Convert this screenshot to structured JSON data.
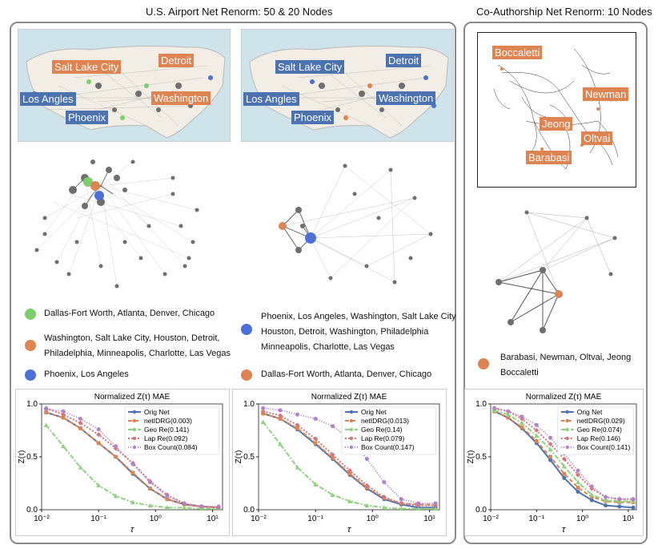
{
  "titles": {
    "airport": "U.S. Airport Net Renorm: 50 & 20 Nodes",
    "coauth": "Co-Authorship Net Renorm: 10 Nodes"
  },
  "maps": {
    "left": {
      "salt_lake_city": "Salt Lake City",
      "detroit": "Detroit",
      "los_angles": "Los Angles",
      "washington": "Washington",
      "phoenix": "Phoenix"
    },
    "right": {
      "salt_lake_city": "Salt Lake City",
      "detroit": "Detroit",
      "los_angles": "Los Angles",
      "washington": "Washington",
      "phoenix": "Phoenix"
    }
  },
  "coauth_labels": {
    "boccaletti": "Boccaletti",
    "newman": "Newman",
    "jeong": "Jeong",
    "oltvai": "Oltvai",
    "barabasi": "Barabasi"
  },
  "legends": {
    "left": {
      "green": "Dallas-Fort Worth, Atlanta, Denver, Chicago",
      "orange_1": "Washington, Salt Lake City, Houston, Detroit,",
      "orange_2": "Philadelphia, Minneapolis, Charlotte, Las Vegas",
      "blue": "Phoenix, Los Angeles"
    },
    "middle": {
      "gray": "Phoenix, Los Angeles, Washington, Salt Lake City",
      "blue_1": "Houston, Detroit, Washington, Philadelphia",
      "blue_2": "Minneapolis, Charlotte, Las Vegas",
      "orange": "Dallas-Fort Worth, Atlanta, Denver, Chicago"
    },
    "right": {
      "orange_1": "Barabasi, Newman, Oltvai, Jeong",
      "orange_2": "Boccaletti"
    }
  },
  "colors": {
    "orig": "#4c72b0",
    "netidrg": "#dd8452",
    "geo": "#8fd17f",
    "lap": "#d5767c",
    "box": "#b083c8",
    "green_node": "#7ccf6c",
    "orange_node": "#dd8452",
    "blue_node": "#4c6fd8",
    "gray_node": "#6e6e6e"
  },
  "chart_data": [
    {
      "type": "line",
      "title": "Normalized Z(τ) MAE",
      "xlabel": "τ",
      "ylabel": "Z(τ)",
      "xscale": "log",
      "xlim": [
        0.01,
        15
      ],
      "ylim": [
        0,
        1
      ],
      "xticks": [
        "10⁻²",
        "10⁻¹",
        "10⁰",
        "10¹"
      ],
      "yticks": [
        "0.0",
        "0.5",
        "1.0"
      ],
      "x": [
        0.012,
        0.024,
        0.048,
        0.1,
        0.2,
        0.4,
        0.8,
        1.6,
        3.2,
        6.4,
        12.8
      ],
      "series": [
        {
          "name": "Orig Net",
          "values": [
            0.92,
            0.87,
            0.77,
            0.63,
            0.5,
            0.34,
            0.2,
            0.1,
            0.05,
            0.03,
            0.02
          ]
        },
        {
          "name": "netIDRG(0.003)",
          "values": [
            0.92,
            0.87,
            0.77,
            0.63,
            0.5,
            0.35,
            0.2,
            0.1,
            0.05,
            0.03,
            0.02
          ]
        },
        {
          "name": "Geo Re(0.141)",
          "values": [
            0.8,
            0.6,
            0.4,
            0.23,
            0.13,
            0.07,
            0.04,
            0.02,
            0.02,
            0.01,
            0.01
          ]
        },
        {
          "name": "Lap Re(0.092)",
          "values": [
            0.96,
            0.9,
            0.82,
            0.71,
            0.58,
            0.44,
            0.27,
            0.14,
            0.06,
            0.03,
            0.02
          ]
        },
        {
          "name": "Box Count(0.084)",
          "values": [
            0.95,
            0.93,
            0.86,
            0.76,
            0.6,
            0.43,
            0.26,
            0.13,
            0.06,
            0.03,
            0.03
          ]
        }
      ]
    },
    {
      "type": "line",
      "title": "Normalized Z(τ) MAE",
      "xlabel": "τ",
      "ylabel": "Z(τ)",
      "xscale": "log",
      "xlim": [
        0.01,
        15
      ],
      "ylim": [
        0,
        1
      ],
      "xticks": [
        "10⁻²",
        "10⁻¹",
        "10⁰",
        "10¹"
      ],
      "yticks": [
        "0.0",
        "0.5",
        "1.0"
      ],
      "x": [
        0.012,
        0.024,
        0.048,
        0.1,
        0.2,
        0.4,
        0.8,
        1.6,
        3.2,
        6.4,
        12.8
      ],
      "series": [
        {
          "name": "Orig Net",
          "values": [
            0.91,
            0.86,
            0.76,
            0.62,
            0.48,
            0.33,
            0.2,
            0.1,
            0.05,
            0.02,
            0.02
          ]
        },
        {
          "name": "netIDRG(0.013)",
          "values": [
            0.91,
            0.86,
            0.77,
            0.63,
            0.49,
            0.34,
            0.21,
            0.11,
            0.06,
            0.05,
            0.05
          ]
        },
        {
          "name": "Geo Re(0.14)",
          "values": [
            0.83,
            0.62,
            0.4,
            0.24,
            0.14,
            0.08,
            0.04,
            0.02,
            0.01,
            0.01,
            0.01
          ]
        },
        {
          "name": "Lap Re(0.079)",
          "values": [
            0.93,
            0.89,
            0.8,
            0.67,
            0.52,
            0.37,
            0.23,
            0.12,
            0.06,
            0.04,
            0.04
          ]
        },
        {
          "name": "Box Count(0.147)",
          "values": [
            0.96,
            0.94,
            0.9,
            0.86,
            0.79,
            0.67,
            0.48,
            0.26,
            0.1,
            0.06,
            0.06
          ]
        }
      ]
    },
    {
      "type": "line",
      "title": "Normalized Z(τ) MAE",
      "xlabel": "τ",
      "ylabel": "Z(τ)",
      "xscale": "log",
      "xlim": [
        0.01,
        15
      ],
      "ylim": [
        0,
        1
      ],
      "xticks": [
        "10⁻²",
        "10⁻¹",
        "10⁰",
        "10¹"
      ],
      "yticks": [
        "0.0",
        "0.5",
        "1.0"
      ],
      "x": [
        0.012,
        0.024,
        0.048,
        0.1,
        0.2,
        0.4,
        0.8,
        1.6,
        3.2,
        6.4,
        12.8
      ],
      "series": [
        {
          "name": "Orig Net",
          "values": [
            0.93,
            0.87,
            0.77,
            0.63,
            0.47,
            0.3,
            0.17,
            0.09,
            0.04,
            0.03,
            0.02
          ]
        },
        {
          "name": "netIDRG(0.029)",
          "values": [
            0.93,
            0.87,
            0.78,
            0.65,
            0.5,
            0.34,
            0.21,
            0.12,
            0.08,
            0.07,
            0.07
          ]
        },
        {
          "name": "Geo Re(0.074)",
          "values": [
            0.94,
            0.9,
            0.82,
            0.7,
            0.57,
            0.41,
            0.26,
            0.14,
            0.09,
            0.08,
            0.08
          ]
        },
        {
          "name": "Lap Re(0.146)",
          "values": [
            0.96,
            0.93,
            0.86,
            0.75,
            0.62,
            0.48,
            0.33,
            0.2,
            0.12,
            0.1,
            0.1
          ]
        },
        {
          "name": "Box Count(0.141)",
          "values": [
            0.96,
            0.93,
            0.88,
            0.8,
            0.68,
            0.53,
            0.37,
            0.22,
            0.12,
            0.1,
            0.1
          ]
        }
      ]
    }
  ]
}
